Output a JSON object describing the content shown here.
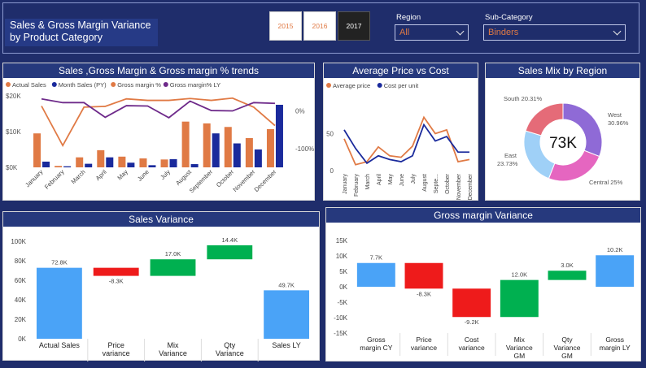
{
  "header": {
    "title": "Sales & Gross Margin Variance by Product Category",
    "years": [
      {
        "label": "2015",
        "selected": false
      },
      {
        "label": "2016",
        "selected": false
      },
      {
        "label": "2017",
        "selected": true
      }
    ],
    "region_label": "Region",
    "region_value": "All",
    "subcategory_label": "Sub-Category",
    "subcategory_value": "Binders"
  },
  "colors": {
    "orange": "#e07a45",
    "navy": "#1a2a9c",
    "purple": "#6e2a8a",
    "blue": "#4aa3f7",
    "red": "#ee1b1b",
    "green": "#00b050",
    "pie_west": "#8f6ad6",
    "pie_central": "#e566c0",
    "pie_east": "#9fd0f7",
    "pie_south": "#e56b78"
  },
  "chart_data": [
    {
      "id": "trends",
      "type": "bar",
      "title": "Sales ,Gross Margin & Gross margin % trends",
      "categories": [
        "January",
        "February",
        "March",
        "April",
        "May",
        "June",
        "July",
        "August",
        "September",
        "October",
        "November",
        "December"
      ],
      "series": [
        {
          "name": "Actual Sales",
          "type": "bar",
          "values": [
            9500,
            400,
            2800,
            4800,
            3000,
            2500,
            2200,
            12800,
            12300,
            11300,
            8200,
            10700
          ]
        },
        {
          "name": "Month Sales (PY)",
          "type": "bar",
          "values": [
            1600,
            300,
            1000,
            2800,
            1300,
            600,
            2300,
            900,
            9500,
            6700,
            5000,
            17500
          ]
        },
        {
          "name": "Gross margin %",
          "type": "line",
          "values": [
            13,
            -92,
            10,
            12,
            32,
            28,
            28,
            33,
            28,
            34,
            10,
            -39
          ]
        },
        {
          "name": "Gross margin% LY",
          "type": "line",
          "values": [
            32,
            22,
            22,
            -17,
            14,
            13,
            -18,
            26,
            1,
            0,
            22,
            20
          ]
        }
      ],
      "y_ticks": [
        "$20K",
        "$10K",
        "$0K"
      ],
      "y2_ticks": [
        "0%",
        "-100%"
      ],
      "ylim": [
        0,
        20000
      ],
      "y2lim": [
        -150,
        40
      ],
      "legend": "top-left"
    },
    {
      "id": "price_cost",
      "type": "line",
      "title": "Average Price vs Cost",
      "categories": [
        "January",
        "February",
        "March",
        "April",
        "May",
        "June",
        "July",
        "August",
        "September",
        "October",
        "November",
        "December"
      ],
      "series": [
        {
          "name": "Average price",
          "values": [
            43,
            8,
            12,
            32,
            20,
            18,
            33,
            72,
            50,
            55,
            12,
            15
          ]
        },
        {
          "name": "Cost per unit",
          "values": [
            55,
            30,
            10,
            20,
            15,
            12,
            20,
            62,
            40,
            46,
            25,
            25
          ]
        }
      ],
      "y_ticks": [
        "50",
        "0"
      ],
      "ylim": [
        0,
        90
      ],
      "legend": "top-left"
    },
    {
      "id": "sales_mix",
      "type": "pie",
      "title": "Sales Mix by Region",
      "center_label": "73K",
      "slices": [
        {
          "name": "West",
          "value": 30.96,
          "label": "30.96%"
        },
        {
          "name": "Central",
          "value": 25,
          "label": "25%"
        },
        {
          "name": "East",
          "value": 23.73,
          "label": "23.73%"
        },
        {
          "name": "South",
          "value": 20.31,
          "label": "20.31%"
        }
      ]
    },
    {
      "id": "sales_variance",
      "type": "bar",
      "subtype": "waterfall",
      "title": "Sales Variance",
      "categories": [
        "Actual Sales",
        "Price variance",
        "Mix Variance",
        "Qty Variance",
        "Sales LY"
      ],
      "steps": [
        {
          "start": 0,
          "end": 72.8,
          "label": "72.8K",
          "kind": "total"
        },
        {
          "start": 72.8,
          "end": 64.5,
          "label": "-8.3K",
          "kind": "decrease"
        },
        {
          "start": 64.5,
          "end": 81.5,
          "label": "17.0K",
          "kind": "increase"
        },
        {
          "start": 81.5,
          "end": 95.9,
          "label": "14.4K",
          "kind": "increase"
        },
        {
          "start": 0,
          "end": 49.7,
          "label": "49.7K",
          "kind": "total"
        }
      ],
      "y_ticks": [
        "100K",
        "80K",
        "60K",
        "40K",
        "20K",
        "0K"
      ],
      "ylim": [
        0,
        100
      ]
    },
    {
      "id": "gm_variance",
      "type": "bar",
      "subtype": "waterfall",
      "title": "Gross margin Variance",
      "categories": [
        "Gross margin CY",
        "Price variance",
        "Cost variance",
        "Mix Variance GM",
        "Qty Variance GM",
        "Gross margin LY"
      ],
      "steps": [
        {
          "start": 0,
          "end": 7.7,
          "label": "7.7K",
          "kind": "total"
        },
        {
          "start": 7.7,
          "end": -0.6,
          "label": "-8.3K",
          "kind": "decrease"
        },
        {
          "start": -0.6,
          "end": -9.8,
          "label": "-9.2K",
          "kind": "decrease"
        },
        {
          "start": -9.8,
          "end": 2.2,
          "label": "12.0K",
          "kind": "increase"
        },
        {
          "start": 2.2,
          "end": 5.2,
          "label": "3.0K",
          "kind": "increase"
        },
        {
          "start": 0,
          "end": 10.2,
          "label": "10.2K",
          "kind": "total"
        }
      ],
      "y_ticks": [
        "15K",
        "10K",
        "5K",
        "0K",
        "-5K",
        "-10K",
        "-15K"
      ],
      "ylim": [
        -15,
        15
      ]
    }
  ]
}
